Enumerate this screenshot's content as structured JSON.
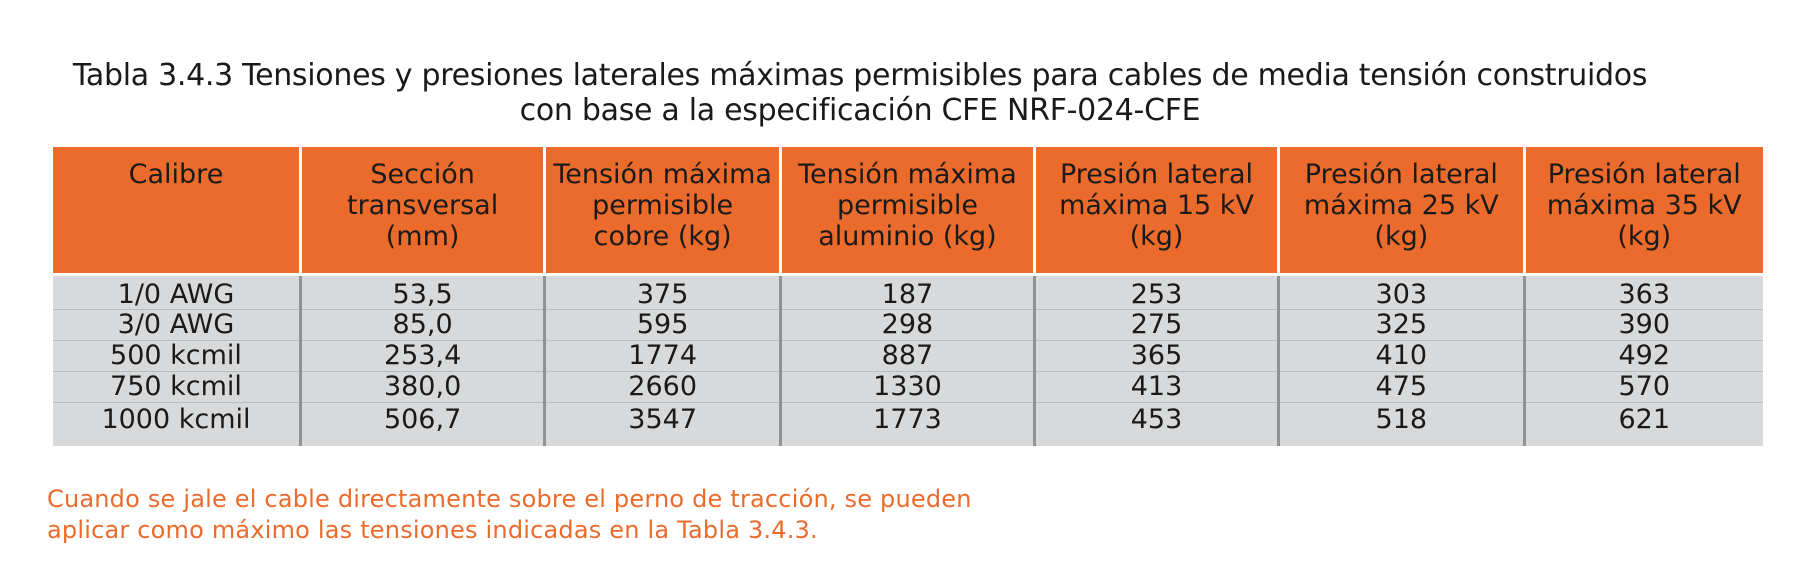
{
  "title": {
    "line1": "Tabla 3.4.3 Tensiones y presiones laterales máximas permisibles para cables de media tensión construidos",
    "line2": "con base a la especificación CFE NRF-024-CFE"
  },
  "table": {
    "headers": [
      "Calibre",
      "Sección transversal (mm)",
      "Tensión máxima permisible cobre (kg)",
      "Tensión máxima permisible aluminio (kg)",
      "Presión lateral máxima 15 kV (kg)",
      "Presión lateral máxima 25 kV (kg)",
      "Presión lateral máxima 35 kV (kg)"
    ],
    "rows": [
      [
        "1/0 AWG",
        "53,5",
        "375",
        "187",
        "253",
        "303",
        "363"
      ],
      [
        "3/0 AWG",
        "85,0",
        "595",
        "298",
        "275",
        "325",
        "390"
      ],
      [
        "500 kcmil",
        "253,4",
        "1774",
        "887",
        "365",
        "410",
        "492"
      ],
      [
        "750 kcmil",
        "380,0",
        "2660",
        "1330",
        "413",
        "475",
        "570"
      ],
      [
        "1000 kcmil",
        "506,7",
        "3547",
        "1773",
        "453",
        "518",
        "621"
      ]
    ]
  },
  "note": {
    "line1": "Cuando se jale el cable directamente sobre el perno de tracción, se pueden",
    "line2": "aplicar como máximo las tensiones indicadas en la Tabla 3.4.3."
  },
  "colors": {
    "header_bg": "#eb6b2c",
    "row_bg": "#d7d9da",
    "note_text": "#eb6b2c"
  }
}
